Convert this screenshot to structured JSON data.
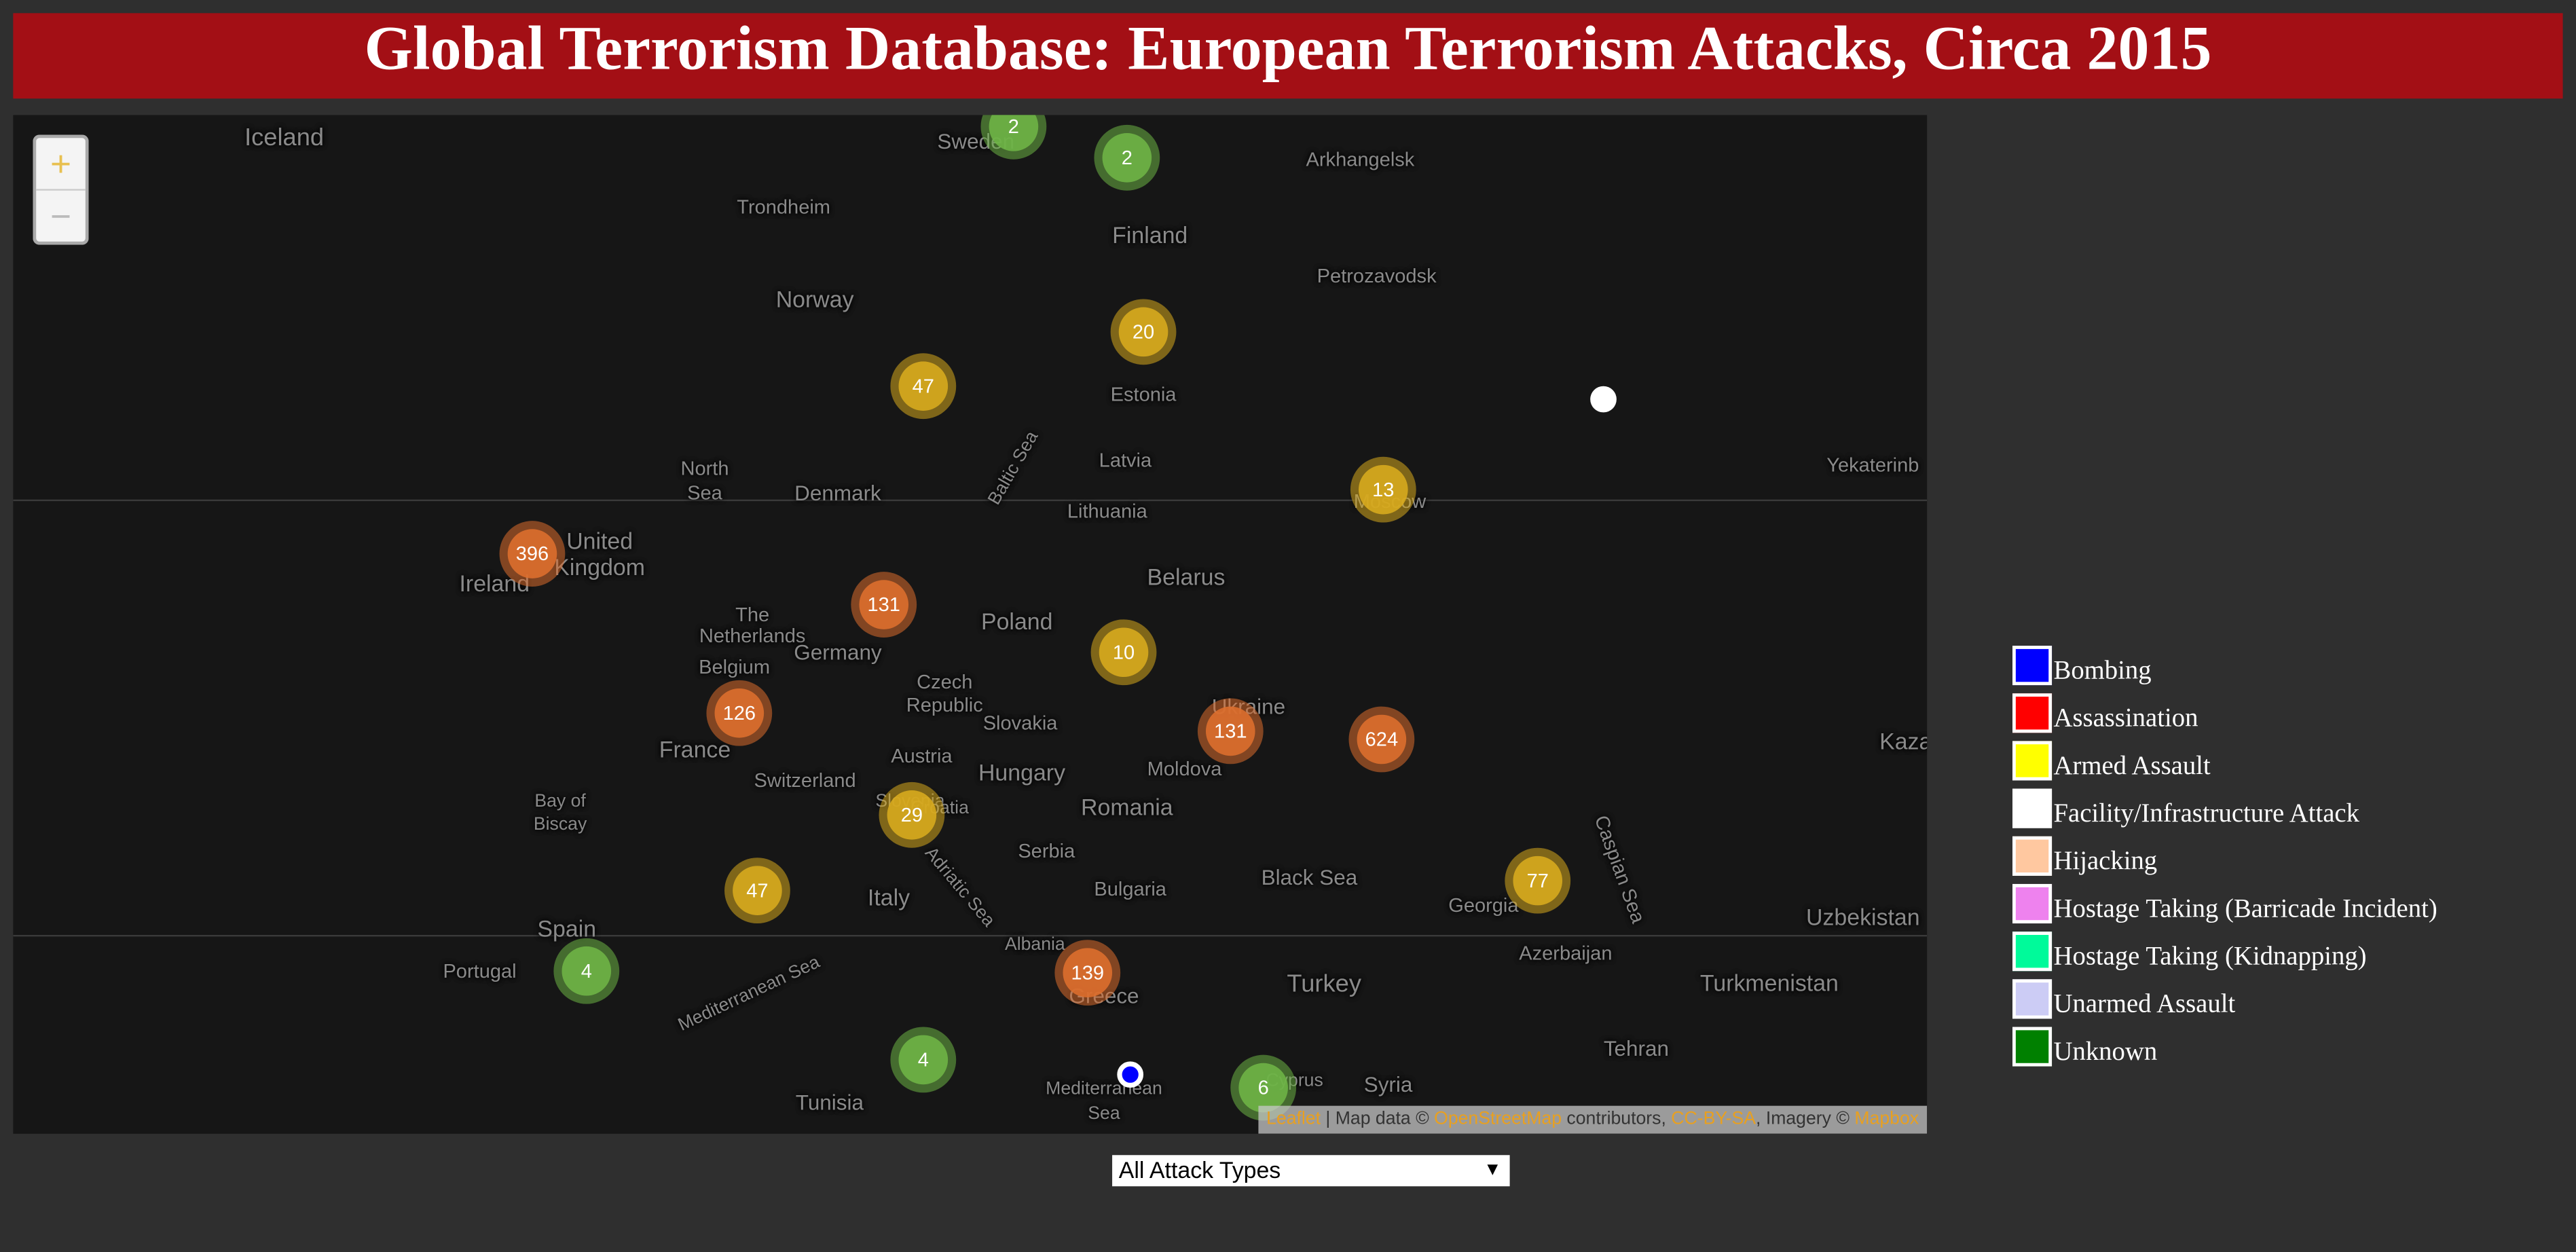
{
  "header": {
    "title": "Global Terrorism Database: European Terrorism Attacks, Circa 2015"
  },
  "map": {
    "zoom_in": "+",
    "zoom_out": "−",
    "clusters": [
      2,
      2,
      20,
      47,
      13,
      396,
      131,
      10,
      126,
      131,
      624,
      29,
      47,
      77,
      4,
      139,
      4,
      6
    ],
    "labels": [
      "Iceland",
      "Sweden",
      "Trondheim",
      "Finland",
      "Arkhangelsk",
      "Norway",
      "Petrozavodsk",
      "Estonia",
      "North",
      "Sea",
      "Denmark",
      "Latvia",
      "Baltic Sea",
      "Lithuania",
      "Moscow",
      "Yekaterinb",
      "United",
      "Kingdom",
      "Ireland",
      "Belarus",
      "The",
      "Netherlands",
      "Germany",
      "Poland",
      "Belgium",
      "Czech",
      "Republic",
      "Slovakia",
      "Ukraine",
      "Moldova",
      "France",
      "Austria",
      "Hungary",
      "Switzerland",
      "Bay of",
      "Biscay",
      "Romania",
      "Slovenia",
      "Croatia",
      "Serbia",
      "Black Sea",
      "Georgia",
      "Caspian Sea",
      "Bulgaria",
      "Italy",
      "Adriatic Sea",
      "Spain",
      "Albania",
      "Azerbaijan",
      "Portugal",
      "Turkey",
      "Turkmenistan",
      "Greece",
      "Uzbekistan",
      "Kaza",
      "Mediterranean Sea",
      "Mediterranean",
      "Sea",
      "Tehran",
      "Tunisia",
      "Syria",
      "Cyprus"
    ],
    "attribution": [
      "Leaflet",
      " | Map data © ",
      "OpenStreetMap",
      " contributors, ",
      "CC-BY-SA",
      ", Imagery © ",
      "Mapbox"
    ]
  },
  "legend": {
    "items": [
      {
        "label": "Bombing",
        "color": "#0000ff"
      },
      {
        "label": "Assassination",
        "color": "#ff0000"
      },
      {
        "label": "Armed Assault",
        "color": "#ffff00"
      },
      {
        "label": "Facility/Infrastructure Attack",
        "color": "#ffffff"
      },
      {
        "label": "Hijacking",
        "color": "#ffc8a0"
      },
      {
        "label": "Hostage Taking (Barricade Incident)",
        "color": "#ee82ee"
      },
      {
        "label": "Hostage Taking (Kidnapping)",
        "color": "#00fa9a"
      },
      {
        "label": "Unarmed Assault",
        "color": "#ccccf5"
      },
      {
        "label": "Unknown",
        "color": "#008000"
      }
    ]
  },
  "controls": {
    "attack_type": "All Attack Types",
    "arrow": "▼"
  }
}
